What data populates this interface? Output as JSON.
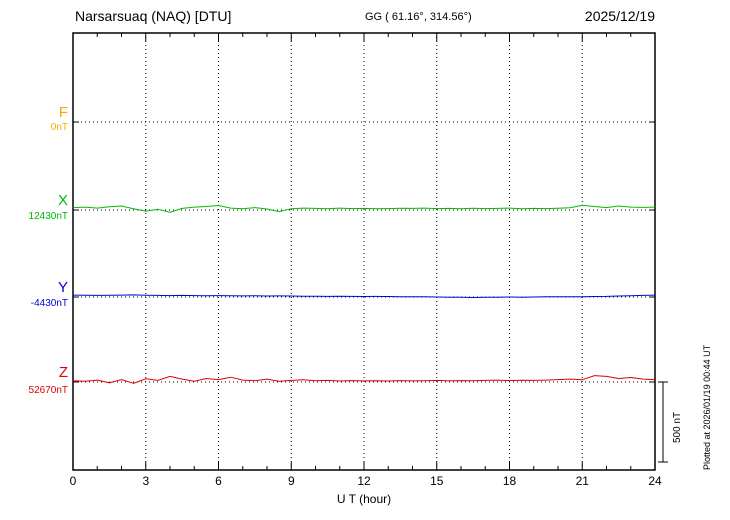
{
  "header": {
    "title": "Narsarsuaq (NAQ)  [DTU]",
    "coords": "GG ( 61.16°, 314.56°)",
    "date": "2025/12/19"
  },
  "axis": {
    "xlabel": "U T (hour)",
    "ticks": [
      "0",
      "3",
      "6",
      "9",
      "12",
      "15",
      "18",
      "21",
      "24"
    ]
  },
  "scale_bar": {
    "label": "500 nT"
  },
  "footer_note": "Plotted at 2026/01/19 00:44 UT",
  "chart_data": {
    "type": "line",
    "title": "Narsarsuaq (NAQ) magnetogram 2025/12/19",
    "x_label": "U T (hour)",
    "x_range_hours": [
      0,
      24
    ],
    "x_step_hours": 0.5,
    "x_ticks": [
      0,
      3,
      6,
      9,
      12,
      15,
      18,
      21,
      24
    ],
    "grid": "dotted vertical every 3 h, dotted horizontal baseline per trace",
    "scale_bar_nT": 500,
    "series": [
      {
        "name": "F",
        "color": "#ffa500",
        "baseline_label": "0nT",
        "baseline_nT": 0,
        "trace_visible": false,
        "offsets_nT": []
      },
      {
        "name": "X",
        "color": "#00bb00",
        "baseline_label": "12430nT",
        "baseline_nT": 12430,
        "trace_visible": true,
        "offsets_nT": [
          15,
          18,
          12,
          20,
          25,
          8,
          -8,
          5,
          -15,
          10,
          18,
          22,
          28,
          12,
          8,
          15,
          6,
          -10,
          8,
          12,
          10,
          8,
          12,
          9,
          10,
          8,
          9,
          11,
          10,
          12,
          9,
          10,
          8,
          11,
          9,
          10,
          12,
          8,
          10,
          9,
          11,
          14,
          30,
          22,
          15,
          25,
          18,
          16,
          18
        ]
      },
      {
        "name": "Y",
        "color": "#0000dd",
        "baseline_label": "-4430nT",
        "baseline_nT": -4430,
        "trace_visible": true,
        "offsets_nT": [
          12,
          11,
          10,
          11,
          12,
          13,
          11,
          10,
          9,
          10,
          9,
          8,
          9,
          8,
          7,
          8,
          6,
          7,
          6,
          5,
          5,
          4,
          5,
          4,
          3,
          4,
          3,
          2,
          1,
          2,
          0,
          -2,
          -1,
          -3,
          -2,
          -1,
          0,
          -1,
          0,
          1,
          2,
          1,
          2,
          3,
          4,
          6,
          8,
          10,
          12
        ]
      },
      {
        "name": "Z",
        "color": "#dd0000",
        "baseline_label": "52670nT",
        "baseline_nT": 52670,
        "trace_visible": true,
        "offsets_nT": [
          8,
          5,
          12,
          -5,
          15,
          -8,
          20,
          10,
          35,
          18,
          5,
          22,
          15,
          30,
          12,
          8,
          18,
          5,
          10,
          14,
          8,
          10,
          6,
          9,
          7,
          8,
          6,
          9,
          7,
          8,
          10,
          7,
          9,
          8,
          10,
          12,
          9,
          11,
          10,
          12,
          15,
          18,
          14,
          40,
          35,
          22,
          28,
          18,
          15
        ]
      }
    ]
  }
}
